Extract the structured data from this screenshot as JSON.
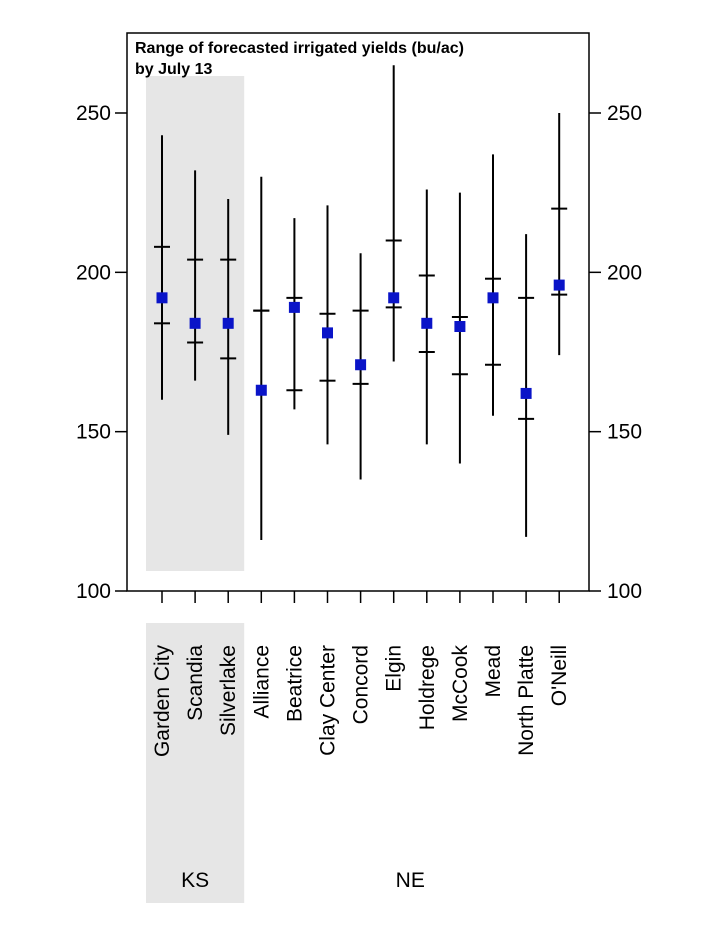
{
  "chart_data": {
    "type": "range-plot",
    "title_lines": [
      "Range of forecasted irrigated yields (bu/ac)",
      "by July 13"
    ],
    "xlabel": "",
    "ylabel": "",
    "ylim": [
      100,
      250
    ],
    "yticks": [
      100,
      150,
      200,
      250
    ],
    "y_axis_both_sides": true,
    "grid": false,
    "categories": [
      "Garden City",
      "Scandia",
      "Silverlake",
      "Alliance",
      "Beatrice",
      "Clay Center",
      "Concord",
      "Elgin",
      "Holdrege",
      "McCook",
      "Mead",
      "North Platte",
      "O'Neill"
    ],
    "min": [
      160,
      166,
      149,
      116,
      157,
      146,
      135,
      172,
      146,
      140,
      155,
      117,
      174
    ],
    "max": [
      243,
      232,
      223,
      230,
      217,
      221,
      206,
      265,
      226,
      225,
      237,
      212,
      250
    ],
    "lower_tick": [
      184,
      178,
      173,
      188,
      163,
      166,
      165,
      189,
      175,
      168,
      171,
      154,
      193
    ],
    "upper_tick": [
      208,
      204,
      204,
      188,
      192,
      187,
      188,
      210,
      199,
      186,
      198,
      192,
      220
    ],
    "forecast": [
      192,
      184,
      184,
      163,
      189,
      181,
      171,
      192,
      184,
      183,
      192,
      162,
      196
    ],
    "marker_color": "#0a14c8",
    "states": [
      {
        "label": "KS",
        "count": 3,
        "shaded": true,
        "shade_color": "#e6e6e6"
      },
      {
        "label": "NE",
        "count": 10,
        "shaded": false
      }
    ]
  }
}
